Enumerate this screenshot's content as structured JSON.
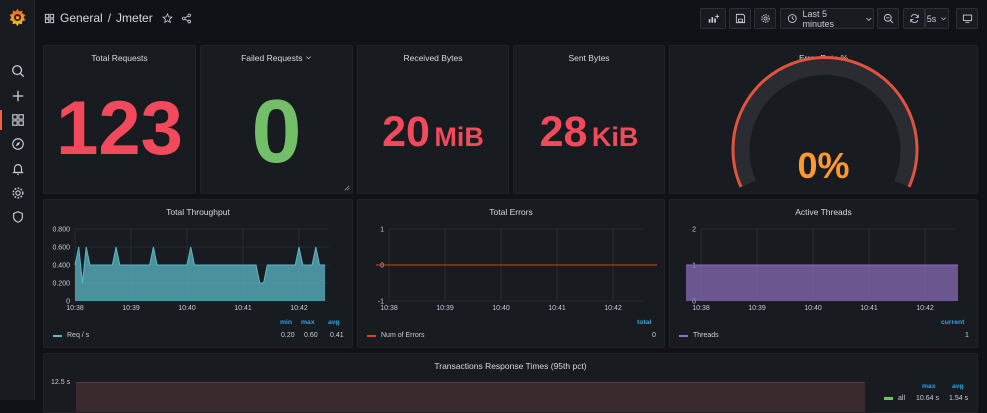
{
  "header": {
    "folder": "General",
    "separator": "/",
    "dashboard": "Jmeter",
    "time_range": "Last 5 minutes",
    "refresh": "5s"
  },
  "stats": {
    "total_requests": {
      "title": "Total Requests",
      "value": "123",
      "color": "#f2495c"
    },
    "failed_requests": {
      "title": "Failed Requests",
      "value": "0",
      "color": "#73bf69"
    },
    "received_bytes": {
      "title": "Received Bytes",
      "value": "20",
      "unit": "MiB",
      "color": "#f2495c"
    },
    "sent_bytes": {
      "title": "Sent Bytes",
      "value": "28",
      "unit": "KiB",
      "color": "#f2495c"
    },
    "error_rate": {
      "title": "Error Rate %",
      "value": "0%",
      "color": "#ff9830"
    }
  },
  "throughput": {
    "title": "Total Throughput",
    "x_ticks": [
      "10:38",
      "10:39",
      "10:40",
      "10:41",
      "10:42"
    ],
    "y_ticks": [
      "0.800",
      "0.600",
      "0.400",
      "0.200",
      "0"
    ],
    "legend_heads": [
      "min",
      "max",
      "avg"
    ],
    "series_name": "Req / s",
    "min": "0.20",
    "max": "0.60",
    "avg": "0.41",
    "color": "#5cb8c8"
  },
  "errors": {
    "title": "Total Errors",
    "x_ticks": [
      "10:38",
      "10:39",
      "10:40",
      "10:41",
      "10:42"
    ],
    "y_ticks": [
      "1",
      "0",
      "-1"
    ],
    "legend_head": "total",
    "series_name": "Num of Errors",
    "total": "0",
    "color": "#e0421f"
  },
  "threads": {
    "title": "Active Threads",
    "x_ticks": [
      "10:38",
      "10:39",
      "10:40",
      "10:41",
      "10:42"
    ],
    "y_ticks": [
      "2",
      "1",
      "0"
    ],
    "legend_head": "current",
    "series_name": "Threads",
    "current": "1",
    "color": "#8f6fc0"
  },
  "response_times": {
    "title": "Transactions Response Times (95th pct)",
    "y_top": "12.5 s",
    "legend_heads": [
      "max",
      "avg"
    ],
    "series_name": "all",
    "max": "10.64 s",
    "avg": "1.54 s",
    "color": "#73bf69"
  },
  "chart_data": [
    {
      "type": "area",
      "title": "Total Throughput",
      "x": [
        "10:38:00",
        "10:38:04",
        "10:38:08",
        "10:38:12",
        "10:38:16",
        "10:38:20",
        "10:38:40",
        "10:38:44",
        "10:38:48",
        "10:39:20",
        "10:39:24",
        "10:39:28",
        "10:40:00",
        "10:40:04",
        "10:40:08",
        "10:41:10",
        "10:41:14",
        "10:41:18",
        "10:41:22",
        "10:41:26",
        "10:41:56",
        "10:42:00",
        "10:42:04",
        "10:42:14",
        "10:42:18",
        "10:42:22",
        "10:42:28"
      ],
      "series": [
        {
          "name": "Req / s",
          "values": [
            0.4,
            0.6,
            0.2,
            0.6,
            0.4,
            0.4,
            0.4,
            0.6,
            0.4,
            0.4,
            0.6,
            0.4,
            0.4,
            0.6,
            0.4,
            0.4,
            0.4,
            0.2,
            0.2,
            0.4,
            0.4,
            0.6,
            0.4,
            0.4,
            0.6,
            0.4,
            0.4
          ]
        }
      ],
      "ylim": [
        0,
        0.8
      ]
    },
    {
      "type": "line",
      "title": "Total Errors",
      "series": [
        {
          "name": "Num of Errors",
          "values": [
            0,
            0
          ]
        }
      ],
      "ylim": [
        -1,
        1
      ]
    },
    {
      "type": "area",
      "title": "Active Threads",
      "series": [
        {
          "name": "Threads",
          "values": [
            1,
            1
          ]
        }
      ],
      "ylim": [
        0,
        2
      ]
    }
  ]
}
